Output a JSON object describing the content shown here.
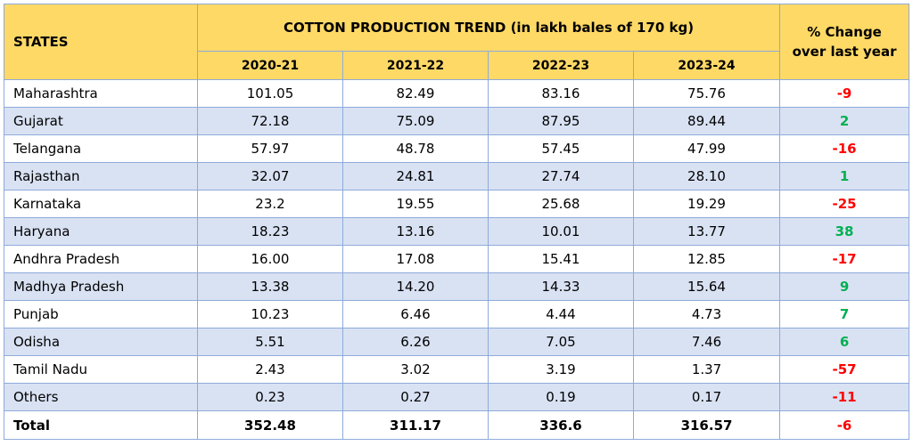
{
  "header": {
    "states_label": "STATES",
    "title": "COTTON PRODUCTION TREND (in lakh bales of 170 kg)",
    "change_label_line1": "% Change",
    "change_label_line2": "over last year",
    "years": [
      "2020-21",
      "2021-22",
      "2022-23",
      "2023-24"
    ]
  },
  "rows": [
    {
      "state": "Maharashtra",
      "v": [
        "101.05",
        "82.49",
        "83.16",
        "75.76"
      ],
      "change": "-9"
    },
    {
      "state": "Gujarat",
      "v": [
        "72.18",
        "75.09",
        "87.95",
        "89.44"
      ],
      "change": "2"
    },
    {
      "state": "Telangana",
      "v": [
        "57.97",
        "48.78",
        "57.45",
        "47.99"
      ],
      "change": "-16"
    },
    {
      "state": "Rajasthan",
      "v": [
        "32.07",
        "24.81",
        "27.74",
        "28.10"
      ],
      "change": "1"
    },
    {
      "state": "Karnataka",
      "v": [
        "23.2",
        "19.55",
        "25.68",
        "19.29"
      ],
      "change": "-25"
    },
    {
      "state": "Haryana",
      "v": [
        "18.23",
        "13.16",
        "10.01",
        "13.77"
      ],
      "change": "38"
    },
    {
      "state": "Andhra Pradesh",
      "v": [
        "16.00",
        "17.08",
        "15.41",
        "12.85"
      ],
      "change": "-17"
    },
    {
      "state": "Madhya Pradesh",
      "v": [
        "13.38",
        "14.20",
        "14.33",
        "15.64"
      ],
      "change": "9"
    },
    {
      "state": "Punjab",
      "v": [
        "10.23",
        "6.46",
        "4.44",
        "4.73"
      ],
      "change": "7"
    },
    {
      "state": "Odisha",
      "v": [
        "5.51",
        "6.26",
        "7.05",
        "7.46"
      ],
      "change": "6"
    },
    {
      "state": "Tamil Nadu",
      "v": [
        "2.43",
        "3.02",
        "3.19",
        "1.37"
      ],
      "change": "-57"
    },
    {
      "state": "Others",
      "v": [
        "0.23",
        "0.27",
        "0.19",
        "0.17"
      ],
      "change": "-11"
    }
  ],
  "total": {
    "state": "Total",
    "v": [
      "352.48",
      "311.17",
      "336.6",
      "316.57"
    ],
    "change": "-6"
  },
  "colors": {
    "header_bg": "#ffd966",
    "stripe_bg": "#d9e2f3",
    "border": "#8eaadb",
    "negative": "#ff0000",
    "positive": "#00b050"
  }
}
